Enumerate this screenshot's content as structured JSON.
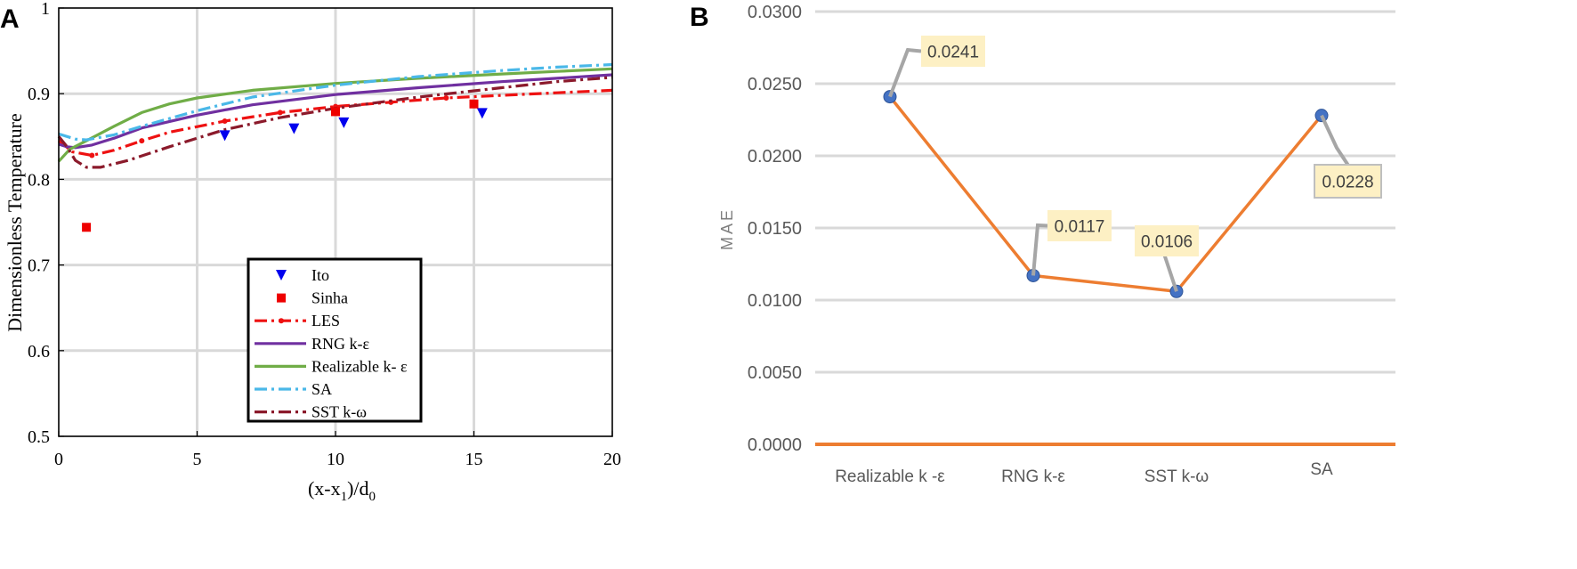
{
  "panel_labels": {
    "a": "A",
    "b": "B"
  },
  "chart_data": [
    {
      "type": "line",
      "xlabel_main": "(x-x",
      "xlabel_sub1": "1",
      "xlabel_mid": ")/d",
      "xlabel_sub2": "0",
      "ylabel": "Dimensionless Temperature",
      "xlim": [
        0,
        20
      ],
      "ylim": [
        0.5,
        1
      ],
      "x_ticks": [
        0,
        5,
        10,
        15,
        20
      ],
      "y_ticks": [
        0.5,
        0.6,
        0.7,
        0.8,
        0.9,
        1
      ],
      "x_tick_labels": [
        "0",
        "5",
        "10",
        "15",
        "20"
      ],
      "y_tick_labels": [
        "0.5",
        "0.6",
        "0.7",
        "0.8",
        "0.9",
        "1"
      ],
      "grid": true,
      "legend_position": "bottom-center",
      "scatter_series": [
        {
          "name": "Ito",
          "marker": "triangle-down",
          "color": "#0000ee",
          "x": [
            6.0,
            8.5,
            10.3,
            15.3
          ],
          "y": [
            0.851,
            0.859,
            0.866,
            0.877
          ]
        },
        {
          "name": "Sinha",
          "marker": "square",
          "color": "#ee0000",
          "x": [
            1.0,
            10.0,
            15.0
          ],
          "y": [
            0.744,
            0.879,
            0.888
          ]
        }
      ],
      "line_series": [
        {
          "name": "LES",
          "color": "#ee1111",
          "dash": "14,5,3,5",
          "marker_dots": true,
          "x": [
            0,
            0.2,
            0.5,
            1.2,
            2,
            3,
            4,
            6,
            8,
            10,
            12,
            14,
            16,
            18,
            20
          ],
          "y": [
            0.845,
            0.84,
            0.832,
            0.828,
            0.834,
            0.845,
            0.855,
            0.868,
            0.878,
            0.885,
            0.89,
            0.895,
            0.898,
            0.901,
            0.904
          ]
        },
        {
          "name": "RNG k-ε",
          "color": "#7030a0",
          "dash": "",
          "x": [
            0,
            0.3,
            0.6,
            1.2,
            2,
            3,
            5,
            7,
            10,
            13,
            16,
            18,
            20
          ],
          "y": [
            0.841,
            0.838,
            0.837,
            0.84,
            0.848,
            0.86,
            0.875,
            0.887,
            0.899,
            0.907,
            0.914,
            0.918,
            0.922
          ]
        },
        {
          "name": "Realizable k- ε",
          "color": "#70ad47",
          "dash": "",
          "x": [
            0,
            0.4,
            1,
            2,
            3,
            4,
            5,
            7,
            10,
            13,
            16,
            18,
            20
          ],
          "y": [
            0.821,
            0.835,
            0.845,
            0.862,
            0.878,
            0.888,
            0.895,
            0.904,
            0.912,
            0.918,
            0.923,
            0.926,
            0.929
          ]
        },
        {
          "name": "SA",
          "color": "#4ab8e8",
          "dash": "14,5,3,5",
          "x": [
            0,
            0.3,
            0.6,
            1,
            2,
            3,
            5,
            7,
            10,
            13,
            16,
            18,
            20
          ],
          "y": [
            0.853,
            0.85,
            0.847,
            0.846,
            0.852,
            0.862,
            0.88,
            0.896,
            0.91,
            0.92,
            0.927,
            0.931,
            0.934
          ]
        },
        {
          "name": "SST k-ω",
          "color": "#8b1a2b",
          "dash": "14,5,3,5",
          "x": [
            0,
            0.3,
            0.6,
            1,
            1.5,
            2.5,
            4,
            6,
            8,
            10,
            13,
            16,
            18,
            20
          ],
          "y": [
            0.85,
            0.838,
            0.822,
            0.814,
            0.814,
            0.822,
            0.838,
            0.858,
            0.872,
            0.883,
            0.896,
            0.907,
            0.914,
            0.919
          ]
        }
      ]
    },
    {
      "type": "line",
      "ylabel": "MAE",
      "ylim": [
        0,
        0.03
      ],
      "y_ticks": [
        0,
        0.005,
        0.01,
        0.015,
        0.02,
        0.025,
        0.03
      ],
      "y_tick_labels": [
        "0.0000",
        "0.0050",
        "0.0100",
        "0.0150",
        "0.0200",
        "0.0250",
        "0.0300"
      ],
      "grid": true,
      "categories": [
        "Realizable k -ε",
        "RNG k-ε",
        "SST k-ω",
        "SA"
      ],
      "series": [
        {
          "color": "#ed7d31",
          "marker_color": "#4472c4",
          "values": [
            0.0241,
            0.0117,
            0.0106,
            0.0228
          ]
        }
      ],
      "data_labels": [
        "0.0241",
        "0.0117",
        "0.0106",
        "0.0228"
      ],
      "colors": {
        "line": "#ed7d31",
        "label_bg": "#fdf0c4",
        "leader": "#a6a6a6",
        "grid": "#d9d9d9"
      }
    }
  ]
}
